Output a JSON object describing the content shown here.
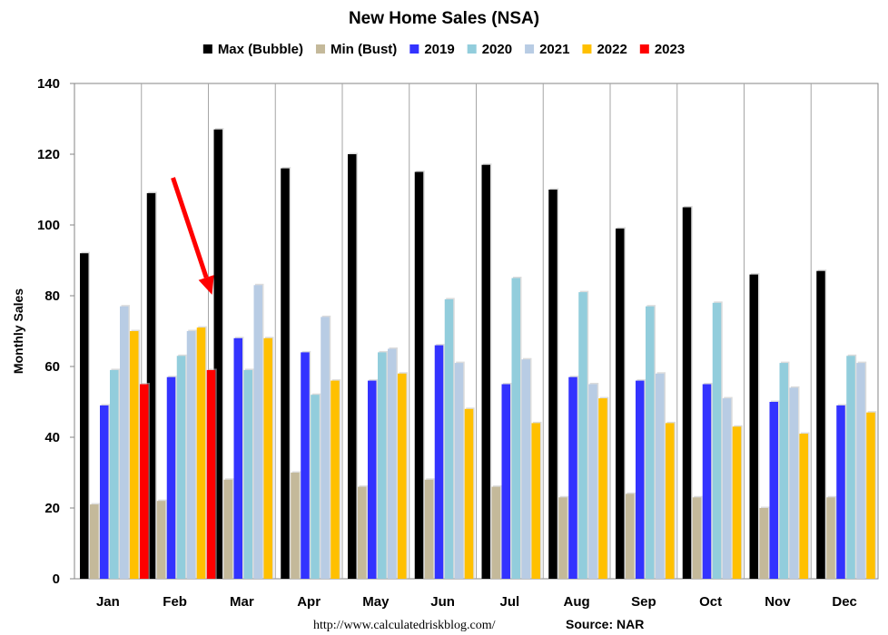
{
  "chart_data": {
    "type": "bar",
    "title": "New Home Sales (NSA)",
    "xlabel": "",
    "ylabel": "Monthly Sales",
    "ylim": [
      0,
      140
    ],
    "yticks": [
      0,
      20,
      40,
      60,
      80,
      100,
      120,
      140
    ],
    "grid": "vertical-category-separators",
    "legend_position": "top",
    "categories": [
      "Jan",
      "Feb",
      "Mar",
      "Apr",
      "May",
      "Jun",
      "Jul",
      "Aug",
      "Sep",
      "Oct",
      "Nov",
      "Dec"
    ],
    "series": [
      {
        "name": "Max (Bubble)",
        "color": "#000000",
        "values": [
          92,
          109,
          127,
          116,
          120,
          115,
          117,
          110,
          99,
          105,
          86,
          87
        ]
      },
      {
        "name": "Min (Bust)",
        "color": "#c4b99a",
        "values": [
          21,
          22,
          28,
          30,
          26,
          28,
          26,
          23,
          24,
          23,
          20,
          23
        ]
      },
      {
        "name": "2019",
        "color": "#3333ff",
        "values": [
          49,
          57,
          68,
          64,
          56,
          66,
          55,
          57,
          56,
          55,
          50,
          49
        ]
      },
      {
        "name": "2020",
        "color": "#92cddc",
        "values": [
          59,
          63,
          59,
          52,
          64,
          79,
          85,
          81,
          77,
          78,
          61,
          63
        ]
      },
      {
        "name": "2021",
        "color": "#b8cce4",
        "values": [
          77,
          70,
          83,
          74,
          65,
          61,
          62,
          55,
          58,
          51,
          54,
          61
        ]
      },
      {
        "name": "2022",
        "color": "#ffc000",
        "values": [
          70,
          71,
          68,
          56,
          58,
          48,
          44,
          51,
          44,
          43,
          41,
          47
        ]
      },
      {
        "name": "2023",
        "color": "#ff0000",
        "values": [
          55,
          59,
          null,
          null,
          null,
          null,
          null,
          null,
          null,
          null,
          null,
          null
        ]
      }
    ],
    "annotation": {
      "type": "arrow",
      "color": "#ff0000",
      "target": {
        "category": "Feb",
        "series": "2023"
      }
    }
  },
  "footer": {
    "url": "http://www.calculatedriskblog.com/",
    "source": "Source: NAR"
  }
}
